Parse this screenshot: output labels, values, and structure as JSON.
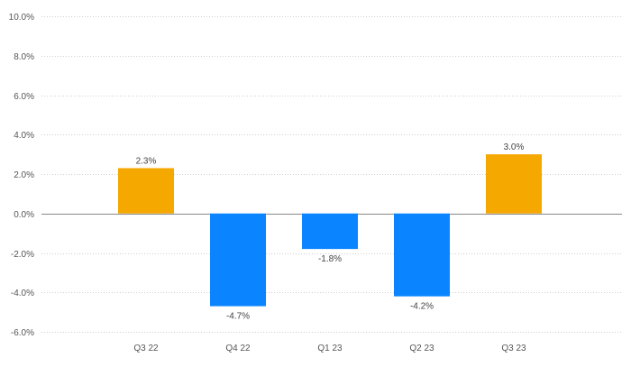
{
  "chart_data": {
    "type": "bar",
    "title": "",
    "xlabel": "",
    "ylabel": "",
    "categories": [
      "Q3 22",
      "Q4 22",
      "Q1 23",
      "Q2 23",
      "Q3 23"
    ],
    "values": [
      2.3,
      -4.7,
      -1.8,
      -4.2,
      3.0
    ],
    "value_labels": [
      "2.3%",
      "-4.7%",
      "-1.8%",
      "-4.2%",
      "3.0%"
    ],
    "ylim": [
      -6,
      10
    ],
    "yticks": [
      -6,
      -4,
      -2,
      0,
      2,
      4,
      6,
      8,
      10
    ],
    "ytick_labels": [
      "-6.0%",
      "-4.0%",
      "-2.0%",
      "0.0%",
      "2.0%",
      "4.0%",
      "6.0%",
      "8.0%",
      "10.0%"
    ],
    "grid": true,
    "legend": "none",
    "colors": {
      "positive": "#f5a800",
      "negative": "#0a84ff",
      "grid": "#cfcfcf",
      "zero_line": "#8a8a8a",
      "text": "#555555"
    }
  }
}
